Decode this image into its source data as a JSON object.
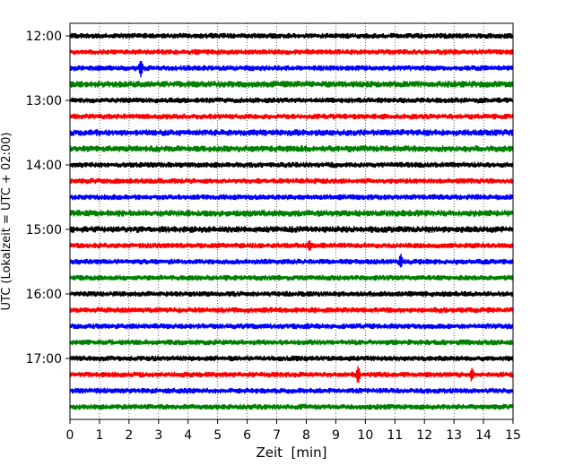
{
  "chart_data": {
    "type": "line",
    "subtype": "helicorder seismogram",
    "xlabel": "Zeit  [min]",
    "ylabel": "UTC (Lokalzeit = UTC + 02:00)",
    "xlim": [
      0,
      15
    ],
    "x_ticks": [
      0,
      1,
      2,
      3,
      4,
      5,
      6,
      7,
      8,
      9,
      10,
      11,
      12,
      13,
      14,
      15
    ],
    "y_tick_labels": [
      "12:00",
      "13:00",
      "14:00",
      "15:00",
      "16:00",
      "17:00"
    ],
    "minutes_per_line": 15,
    "vertical_grid": "dotted",
    "trace_colors": [
      "#000000",
      "#ff0000",
      "#0000ff",
      "#008000"
    ],
    "series": [
      {
        "start": "12:00",
        "color": "#000000",
        "amplitude": 0.12,
        "events": []
      },
      {
        "start": "12:15",
        "color": "#ff0000",
        "amplitude": 0.12,
        "events": []
      },
      {
        "start": "12:30",
        "color": "#0000ff",
        "amplitude": 0.12,
        "events": [
          {
            "minute": 2.4,
            "amplitude": 0.5
          }
        ]
      },
      {
        "start": "12:45",
        "color": "#008000",
        "amplitude": 0.14,
        "events": []
      },
      {
        "start": "13:00",
        "color": "#000000",
        "amplitude": 0.12,
        "events": []
      },
      {
        "start": "13:15",
        "color": "#ff0000",
        "amplitude": 0.12,
        "events": []
      },
      {
        "start": "13:30",
        "color": "#0000ff",
        "amplitude": 0.14,
        "events": []
      },
      {
        "start": "13:45",
        "color": "#008000",
        "amplitude": 0.14,
        "events": []
      },
      {
        "start": "14:00",
        "color": "#000000",
        "amplitude": 0.12,
        "events": []
      },
      {
        "start": "14:15",
        "color": "#ff0000",
        "amplitude": 0.12,
        "events": []
      },
      {
        "start": "14:30",
        "color": "#0000ff",
        "amplitude": 0.12,
        "events": []
      },
      {
        "start": "14:45",
        "color": "#008000",
        "amplitude": 0.14,
        "events": []
      },
      {
        "start": "15:00",
        "color": "#000000",
        "amplitude": 0.14,
        "events": []
      },
      {
        "start": "15:15",
        "color": "#ff0000",
        "amplitude": 0.12,
        "events": [
          {
            "minute": 8.1,
            "amplitude": 0.25
          }
        ]
      },
      {
        "start": "15:30",
        "color": "#0000ff",
        "amplitude": 0.12,
        "events": [
          {
            "minute": 11.2,
            "amplitude": 0.35
          }
        ]
      },
      {
        "start": "15:45",
        "color": "#008000",
        "amplitude": 0.12,
        "events": []
      },
      {
        "start": "16:00",
        "color": "#000000",
        "amplitude": 0.12,
        "events": []
      },
      {
        "start": "16:15",
        "color": "#ff0000",
        "amplitude": 0.12,
        "events": []
      },
      {
        "start": "16:30",
        "color": "#0000ff",
        "amplitude": 0.12,
        "events": []
      },
      {
        "start": "16:45",
        "color": "#008000",
        "amplitude": 0.12,
        "events": []
      },
      {
        "start": "17:00",
        "color": "#000000",
        "amplitude": 0.12,
        "events": []
      },
      {
        "start": "17:15",
        "color": "#ff0000",
        "amplitude": 0.12,
        "events": [
          {
            "minute": 9.75,
            "amplitude": 0.45
          },
          {
            "minute": 13.6,
            "amplitude": 0.3
          }
        ]
      },
      {
        "start": "17:30",
        "color": "#0000ff",
        "amplitude": 0.12,
        "events": []
      },
      {
        "start": "17:45",
        "color": "#008000",
        "amplitude": 0.12,
        "events": []
      }
    ]
  }
}
